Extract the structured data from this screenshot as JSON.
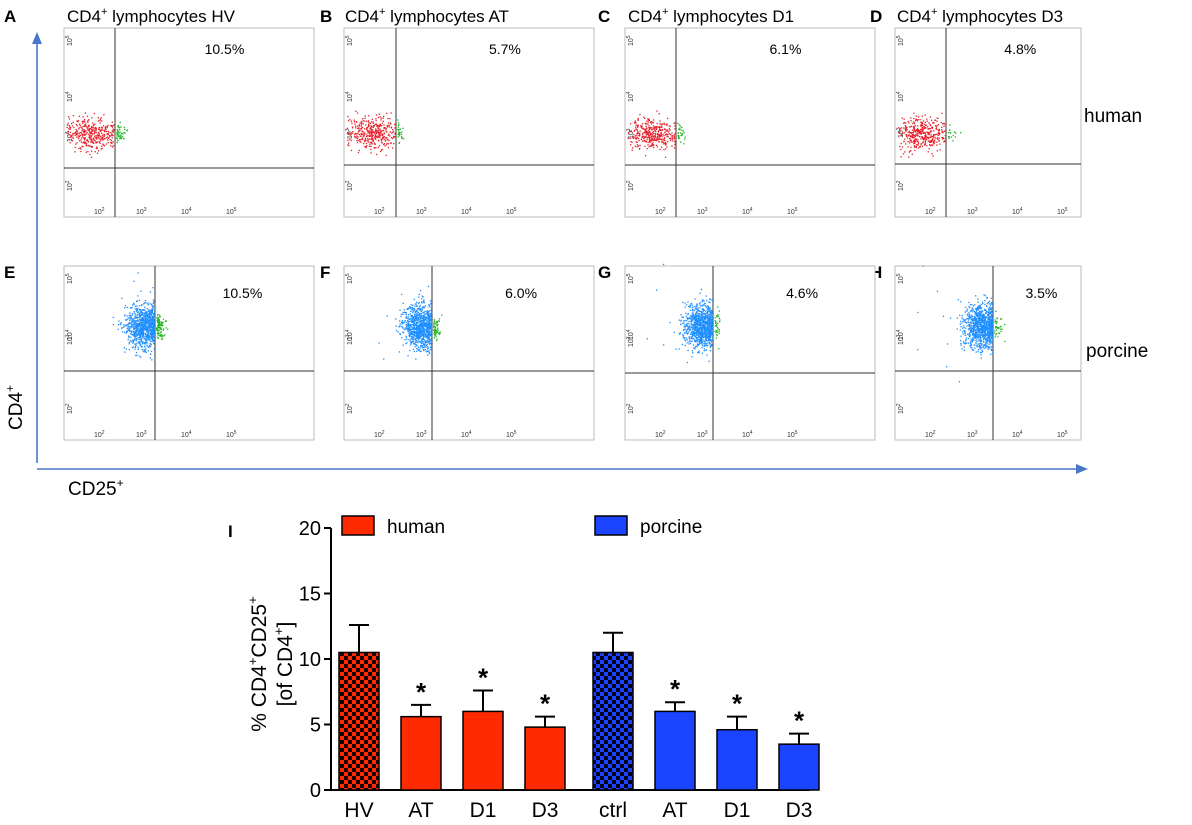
{
  "figure": {
    "colors": {
      "human": "#ff2a00",
      "porcine": "#1a44ff",
      "human_dots": "#e8202a",
      "porcine_dots": "#1f8fff",
      "double_positive_dots": "#21b521",
      "axis_arrow": "#4a78c8"
    },
    "row_labels": {
      "human": "human",
      "porcine": "porcine"
    },
    "axis_arrows": {
      "y_label": "CD4",
      "y_sup": "+",
      "x_label": "CD25",
      "x_sup": "+"
    },
    "panel_tick_labels": [
      "10",
      "10",
      "10",
      "10"
    ],
    "panel_tick_exponents": [
      "2",
      "3",
      "4",
      "5"
    ],
    "panels": [
      {
        "letter": "A",
        "title_prefix": "CD4",
        "title_sup": "+",
        "title_rest": " lymphocytes HV",
        "percent_label": "10.5%",
        "species": "human",
        "upper_right_percent": 10.5
      },
      {
        "letter": "B",
        "title_prefix": "CD4",
        "title_sup": "+",
        "title_rest": " lymphocytes AT",
        "percent_label": "5.7%",
        "species": "human",
        "upper_right_percent": 5.7
      },
      {
        "letter": "C",
        "title_prefix": "CD4",
        "title_sup": "+",
        "title_rest": " lymphocytes D1",
        "percent_label": "6.1%",
        "species": "human",
        "upper_right_percent": 6.1
      },
      {
        "letter": "D",
        "title_prefix": "CD4",
        "title_sup": "+",
        "title_rest": " lymphocytes D3",
        "percent_label": "4.8%",
        "species": "human",
        "upper_right_percent": 4.8
      },
      {
        "letter": "E",
        "percent_label": "10.5%",
        "species": "porcine",
        "upper_right_percent": 10.5
      },
      {
        "letter": "F",
        "percent_label": "6.0%",
        "species": "porcine",
        "upper_right_percent": 6.0
      },
      {
        "letter": "G",
        "percent_label": "4.6%",
        "species": "porcine",
        "upper_right_percent": 4.6
      },
      {
        "letter": "H",
        "percent_label": "3.5%",
        "species": "porcine",
        "upper_right_percent": 3.5
      }
    ]
  },
  "chart_data": {
    "type": "bar",
    "panel_letter": "I",
    "title": "",
    "xlabel": "",
    "ylabel_line1": "% CD4",
    "ylabel_sup1": "+",
    "ylabel_mid": "CD25",
    "ylabel_sup2": "+",
    "ylabel_line2_open": "[of CD4",
    "ylabel_sup3": "+",
    "ylabel_line2_close": "]",
    "ylim": [
      0,
      20
    ],
    "yticks": [
      0,
      5,
      10,
      15,
      20
    ],
    "ytick_labels": [
      "0",
      "5",
      "10",
      "15",
      "20"
    ],
    "legend": [
      {
        "name": "human",
        "color": "#ff2a00"
      },
      {
        "name": "porcine",
        "color": "#1a44ff"
      }
    ],
    "legend_placement": "top",
    "series": [
      {
        "name": "human",
        "categories": [
          "HV",
          "AT",
          "D1",
          "D3"
        ],
        "values": [
          10.5,
          5.6,
          6.0,
          4.8
        ],
        "errors": [
          2.1,
          0.9,
          1.6,
          0.8
        ],
        "significant": [
          false,
          true,
          true,
          true
        ],
        "patterned": [
          true,
          false,
          false,
          false
        ]
      },
      {
        "name": "porcine",
        "categories": [
          "ctrl",
          "AT",
          "D1",
          "D3"
        ],
        "values": [
          10.5,
          6.0,
          4.6,
          3.5
        ],
        "errors": [
          1.5,
          0.7,
          1.0,
          0.8
        ],
        "significant": [
          false,
          true,
          true,
          true
        ],
        "patterned": [
          true,
          false,
          false,
          false
        ]
      }
    ],
    "significance_marker": "*"
  }
}
